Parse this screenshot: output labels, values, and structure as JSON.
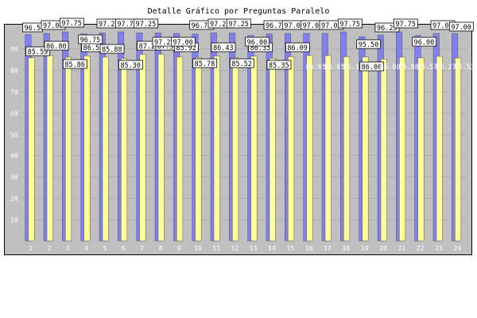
{
  "chart_data": {
    "type": "bar",
    "title": "Detalle Gráfico por Preguntas Paralelo",
    "xlabel": "",
    "ylabel": "",
    "ylim": [
      0,
      100
    ],
    "y_ticks": [
      10,
      20,
      30,
      40,
      50,
      60,
      70,
      80,
      90
    ],
    "grid": true,
    "categories": [
      "1",
      "2",
      "3",
      "4",
      "5",
      "6",
      "7",
      "8",
      "9",
      "10",
      "11",
      "12",
      "13",
      "14",
      "15",
      "16",
      "17",
      "18",
      "19",
      "20",
      "21",
      "22",
      "23",
      "24"
    ],
    "series": [
      {
        "color": "#8080f0",
        "values": [
          96.5,
          97.0,
          97.75,
          96.75,
          97.25,
          97.75,
          97.25,
          97.25,
          97.0,
          96.75,
          97.25,
          97.25,
          96.0,
          96.75,
          97.0,
          97.0,
          97.0,
          97.75,
          95.5,
          96.25,
          97.75,
          96.0,
          97.0,
          97.0
        ],
        "labels": [
          "96.5",
          "97.00",
          "97.75",
          "96.75",
          "97.25",
          "97.75",
          "97.25",
          "97.25",
          "97.00",
          "96.75",
          "97.25",
          "97.25",
          "96.00",
          "96.75",
          "97.00",
          "97.00",
          "97.00",
          "97.75",
          "95.50",
          "96.25",
          "97.75",
          "96.00",
          "97.00",
          "97.00"
        ]
      },
      {
        "color": "#ffff99",
        "values": [
          85.59,
          86.8,
          85.86,
          86.5,
          85.88,
          85.3,
          87.21,
          87.31,
          85.92,
          85.78,
          86.43,
          85.52,
          86.35,
          85.35,
          86.09,
          86.65,
          86.65,
          86.11,
          86.0,
          85.0,
          85.88,
          85.57,
          86.27,
          85.53
        ],
        "labels": [
          "85.59",
          "86.80",
          "85.86",
          "86.5",
          "85.88",
          "85.30",
          "87.21",
          "87.31",
          "85.92",
          "85.78",
          "86.43",
          "85.52",
          "86.35",
          "85.35",
          "86.09",
          "86.65",
          "86.65",
          "86.11",
          "86.00",
          "85.00",
          "85.88",
          "85.57",
          "86.27",
          "85.53"
        ]
      }
    ]
  }
}
